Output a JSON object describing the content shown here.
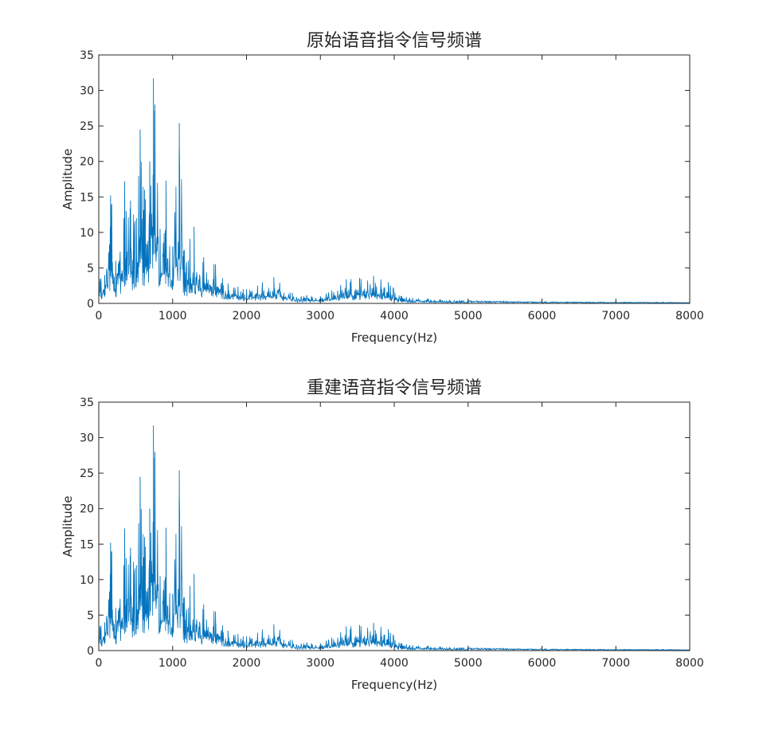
{
  "chart_data": [
    {
      "type": "line",
      "title": "原始语音指令信号频谱",
      "xlabel": "Frequency(Hz)",
      "ylabel": "Amplitude",
      "xlim": [
        0,
        8000
      ],
      "ylim": [
        0,
        35
      ],
      "xticks": [
        "0",
        "1000",
        "2000",
        "3000",
        "4000",
        "5000",
        "6000",
        "7000",
        "8000"
      ],
      "yticks": [
        "0",
        "5",
        "10",
        "15",
        "20",
        "25",
        "30",
        "35"
      ],
      "grid": false,
      "legend": "none",
      "line_color": "#0072BD",
      "peaks": {
        "x": [
          0,
          30,
          80,
          160,
          175,
          230,
          350,
          370,
          430,
          510,
          560,
          620,
          690,
          740,
          760,
          830,
          910,
          1000,
          1090,
          1160,
          1290,
          1420,
          1580,
          1750,
          2000,
          2370,
          2620,
          3000,
          3350,
          3530,
          3720,
          3920,
          4100,
          4600,
          5000,
          5500,
          6500,
          8000
        ],
        "y": [
          4.5,
          3.5,
          4.0,
          15.2,
          14.0,
          6.0,
          17.2,
          13.0,
          14.5,
          12.0,
          24.5,
          16.0,
          20.0,
          31.7,
          28.0,
          10.5,
          17.3,
          8.0,
          25.4,
          7.5,
          10.8,
          6.5,
          5.5,
          2.8,
          2.0,
          3.7,
          1.5,
          1.0,
          3.4,
          3.6,
          3.9,
          3.0,
          1.0,
          0.6,
          0.4,
          0.3,
          0.2,
          0.15
        ]
      }
    },
    {
      "type": "line",
      "title": "重建语音指令信号频谱",
      "xlabel": "Frequency(Hz)",
      "ylabel": "Amplitude",
      "xlim": [
        0,
        8000
      ],
      "ylim": [
        0,
        35
      ],
      "xticks": [
        "0",
        "1000",
        "2000",
        "3000",
        "4000",
        "5000",
        "6000",
        "7000",
        "8000"
      ],
      "yticks": [
        "0",
        "5",
        "10",
        "15",
        "20",
        "25",
        "30",
        "35"
      ],
      "grid": false,
      "legend": "none",
      "line_color": "#0072BD",
      "peaks": {
        "x": [
          0,
          30,
          80,
          160,
          175,
          230,
          350,
          370,
          430,
          510,
          560,
          620,
          690,
          740,
          760,
          830,
          910,
          1000,
          1090,
          1160,
          1290,
          1420,
          1580,
          1750,
          2000,
          2370,
          2620,
          3000,
          3350,
          3530,
          3720,
          3920,
          4100,
          4600,
          5000,
          5500,
          6500,
          8000
        ],
        "y": [
          4.5,
          3.5,
          4.0,
          15.2,
          14.0,
          6.0,
          17.2,
          13.0,
          14.5,
          12.0,
          24.5,
          16.0,
          20.0,
          31.7,
          28.0,
          10.5,
          17.3,
          8.0,
          25.4,
          7.5,
          10.8,
          6.5,
          5.5,
          2.8,
          2.0,
          3.7,
          1.5,
          1.0,
          3.4,
          3.6,
          3.9,
          3.0,
          1.0,
          0.6,
          0.4,
          0.3,
          0.2,
          0.15
        ]
      }
    }
  ]
}
